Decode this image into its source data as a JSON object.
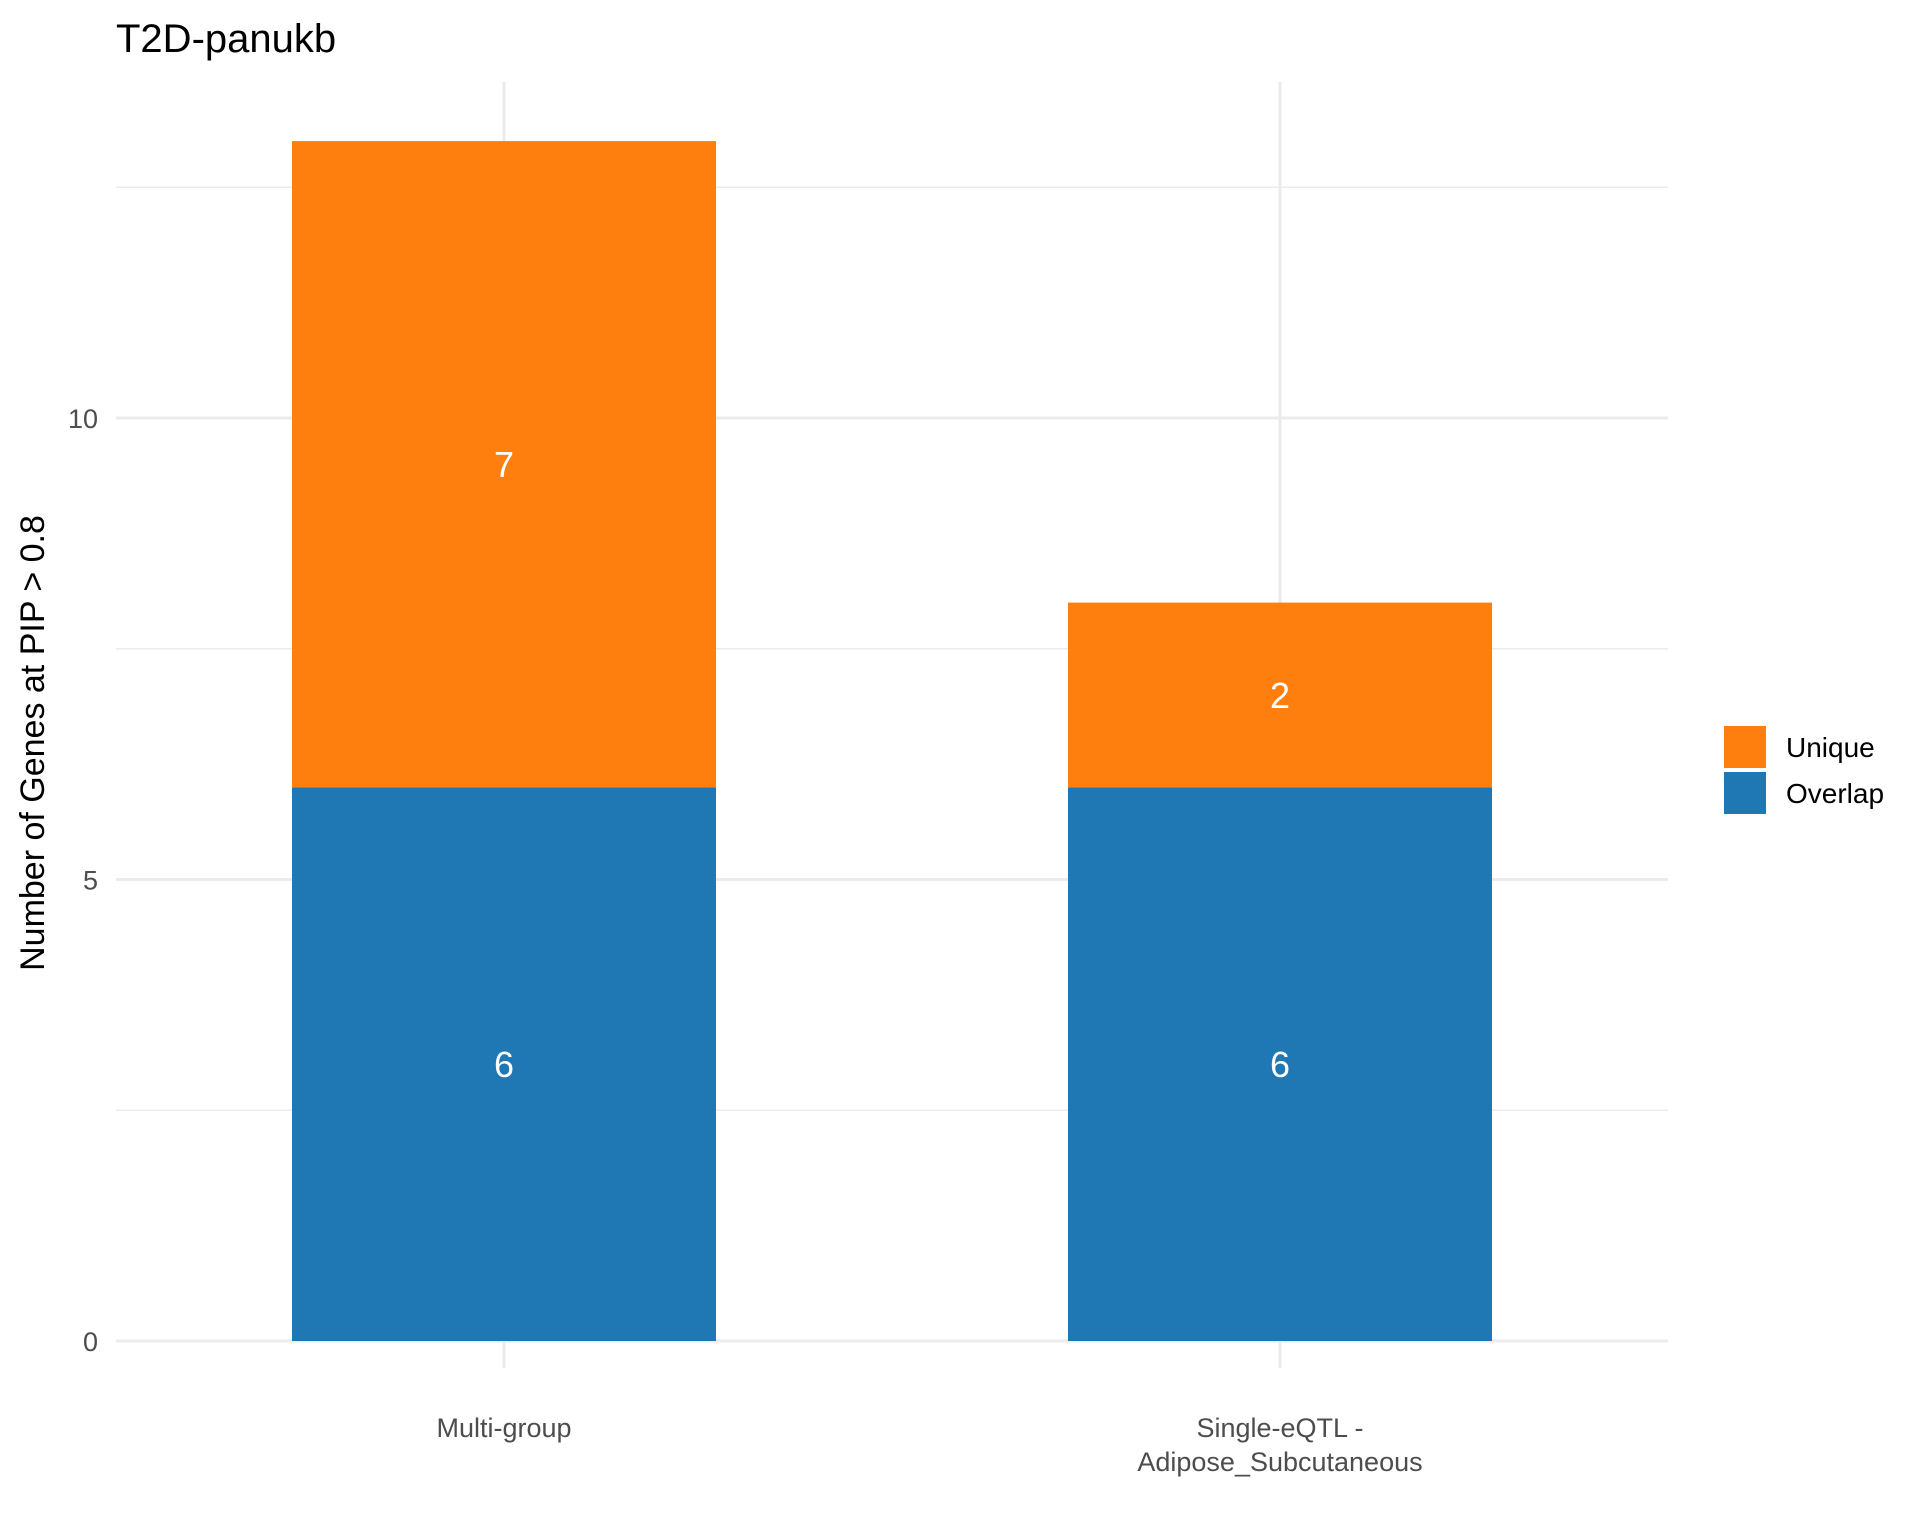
{
  "chart_data": {
    "type": "bar",
    "stacked": true,
    "title": "T2D-panukb",
    "xlabel": "",
    "ylabel": "Number of Genes at PIP > 0.8",
    "categories": [
      "Multi-group",
      "Single-eQTL - Adipose_Subcutaneous"
    ],
    "category_labels": [
      [
        "Multi-group"
      ],
      [
        "Single-eQTL -",
        "Adipose_Subcutaneous"
      ]
    ],
    "series": [
      {
        "name": "Overlap",
        "values": [
          6,
          6
        ],
        "color": "#1f77b4"
      },
      {
        "name": "Unique",
        "values": [
          7,
          2
        ],
        "color": "#ff7f0e"
      }
    ],
    "data_labels": [
      [
        "6",
        "6"
      ],
      [
        "7",
        "2"
      ]
    ],
    "ylim": [
      0,
      13
    ],
    "yticks": [
      0,
      5,
      10
    ],
    "ytick_labels": [
      "0",
      "5",
      "10"
    ],
    "grid": true,
    "legend": {
      "placement": "right",
      "entries": [
        "Unique",
        "Overlap"
      ]
    }
  }
}
